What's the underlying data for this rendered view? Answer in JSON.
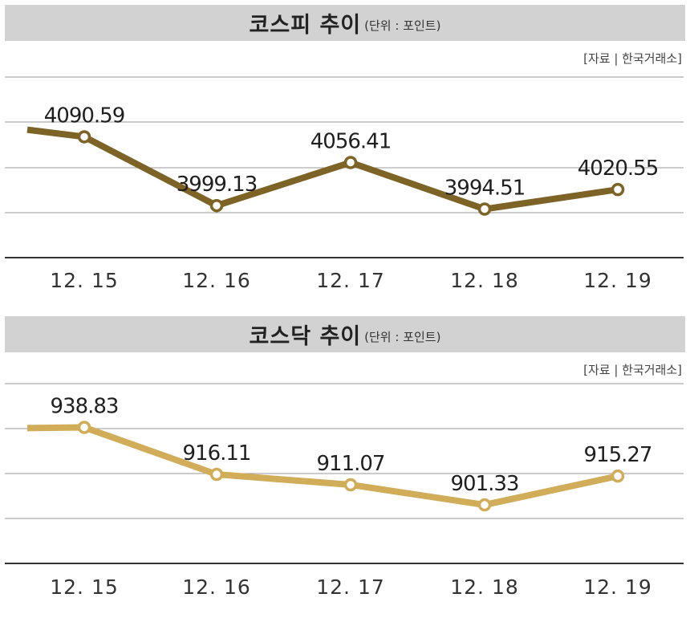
{
  "chart_data": [
    {
      "type": "line",
      "title": "코스피 추이",
      "unit": "(단위 : 포인트)",
      "source": "[자료 | 한국거래소]",
      "categories": [
        "12. 15",
        "12. 16",
        "12. 17",
        "12. 18",
        "12. 19"
      ],
      "values": [
        4090.59,
        3999.13,
        4056.41,
        3994.51,
        4020.55
      ],
      "labels": [
        "4090.59",
        "3999.13",
        "4056.41",
        "3994.51",
        "4020.55"
      ],
      "line_start_value": 4100,
      "ylim": [
        3930,
        4170
      ],
      "grid": true,
      "color": "#7d6326"
    },
    {
      "type": "line",
      "title": "코스닥 추이",
      "unit": "(단위 : 포인트)",
      "source": "[자료 | 한국거래소]",
      "categories": [
        "12. 15",
        "12. 16",
        "12. 17",
        "12. 18",
        "12. 19"
      ],
      "values": [
        938.83,
        916.11,
        911.07,
        901.33,
        915.27
      ],
      "labels": [
        "938.83",
        "916.11",
        "911.07",
        "901.33",
        "915.27"
      ],
      "line_start_value": 938.5,
      "ylim": [
        873,
        960
      ],
      "grid": true,
      "color": "#d1ad5a"
    }
  ]
}
